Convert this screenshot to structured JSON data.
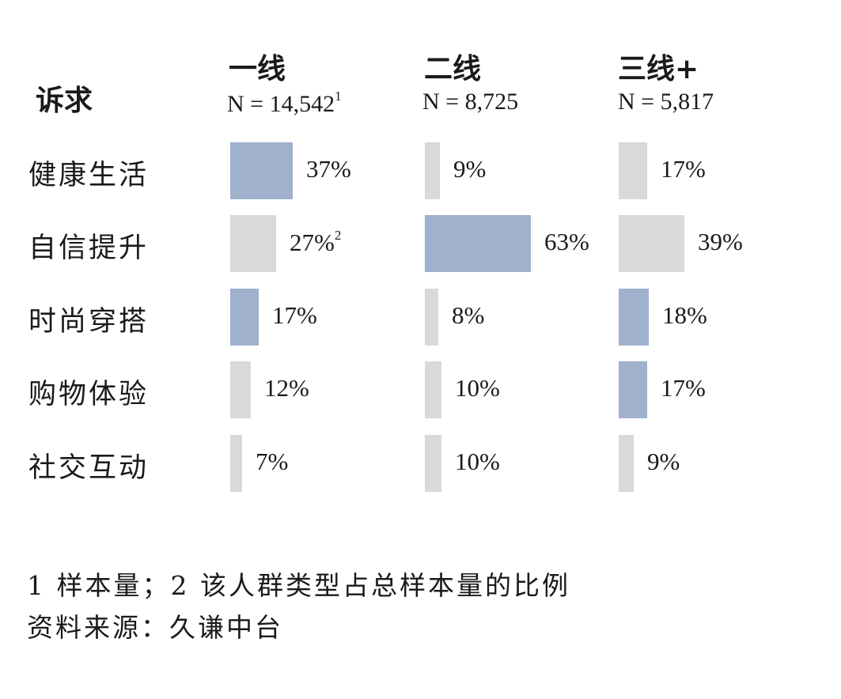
{
  "chart_data": {
    "type": "bar",
    "row_header": "诉求",
    "columns": [
      {
        "title": "一线",
        "n_label": "N = 14,542",
        "n_sup": "1"
      },
      {
        "title": "二线",
        "n_label": "N = 8,725",
        "n_sup": ""
      },
      {
        "title": "三线+",
        "n_label": "N = 5,817",
        "n_sup": ""
      }
    ],
    "categories": [
      "健康生活",
      "自信提升",
      "时尚穿搭",
      "购物体验",
      "社交互动"
    ],
    "series": [
      {
        "values": [
          37,
          27,
          17,
          12,
          7
        ],
        "labels": [
          "37%",
          "27%",
          "17%",
          "12%",
          "7%"
        ],
        "sups": [
          "",
          "2",
          "",
          "",
          ""
        ],
        "highlight": [
          true,
          false,
          true,
          false,
          false
        ]
      },
      {
        "values": [
          9,
          63,
          8,
          10,
          10
        ],
        "labels": [
          "9%",
          "63%",
          "8%",
          "10%",
          "10%"
        ],
        "sups": [
          "",
          "",
          "",
          "",
          ""
        ],
        "highlight": [
          false,
          true,
          false,
          false,
          false
        ]
      },
      {
        "values": [
          17,
          39,
          18,
          17,
          9
        ],
        "labels": [
          "17%",
          "39%",
          "18%",
          "17%",
          "9%"
        ],
        "sups": [
          "",
          "",
          "",
          "",
          ""
        ],
        "highlight": [
          false,
          false,
          true,
          true,
          false
        ]
      }
    ],
    "colors": {
      "highlight": "#9fb1cc",
      "base": "#d9d9d9"
    }
  },
  "footnotes": {
    "note": "1 样本量；2 该人群类型占总样本量的比例",
    "source": "资料来源：久谦中台"
  }
}
